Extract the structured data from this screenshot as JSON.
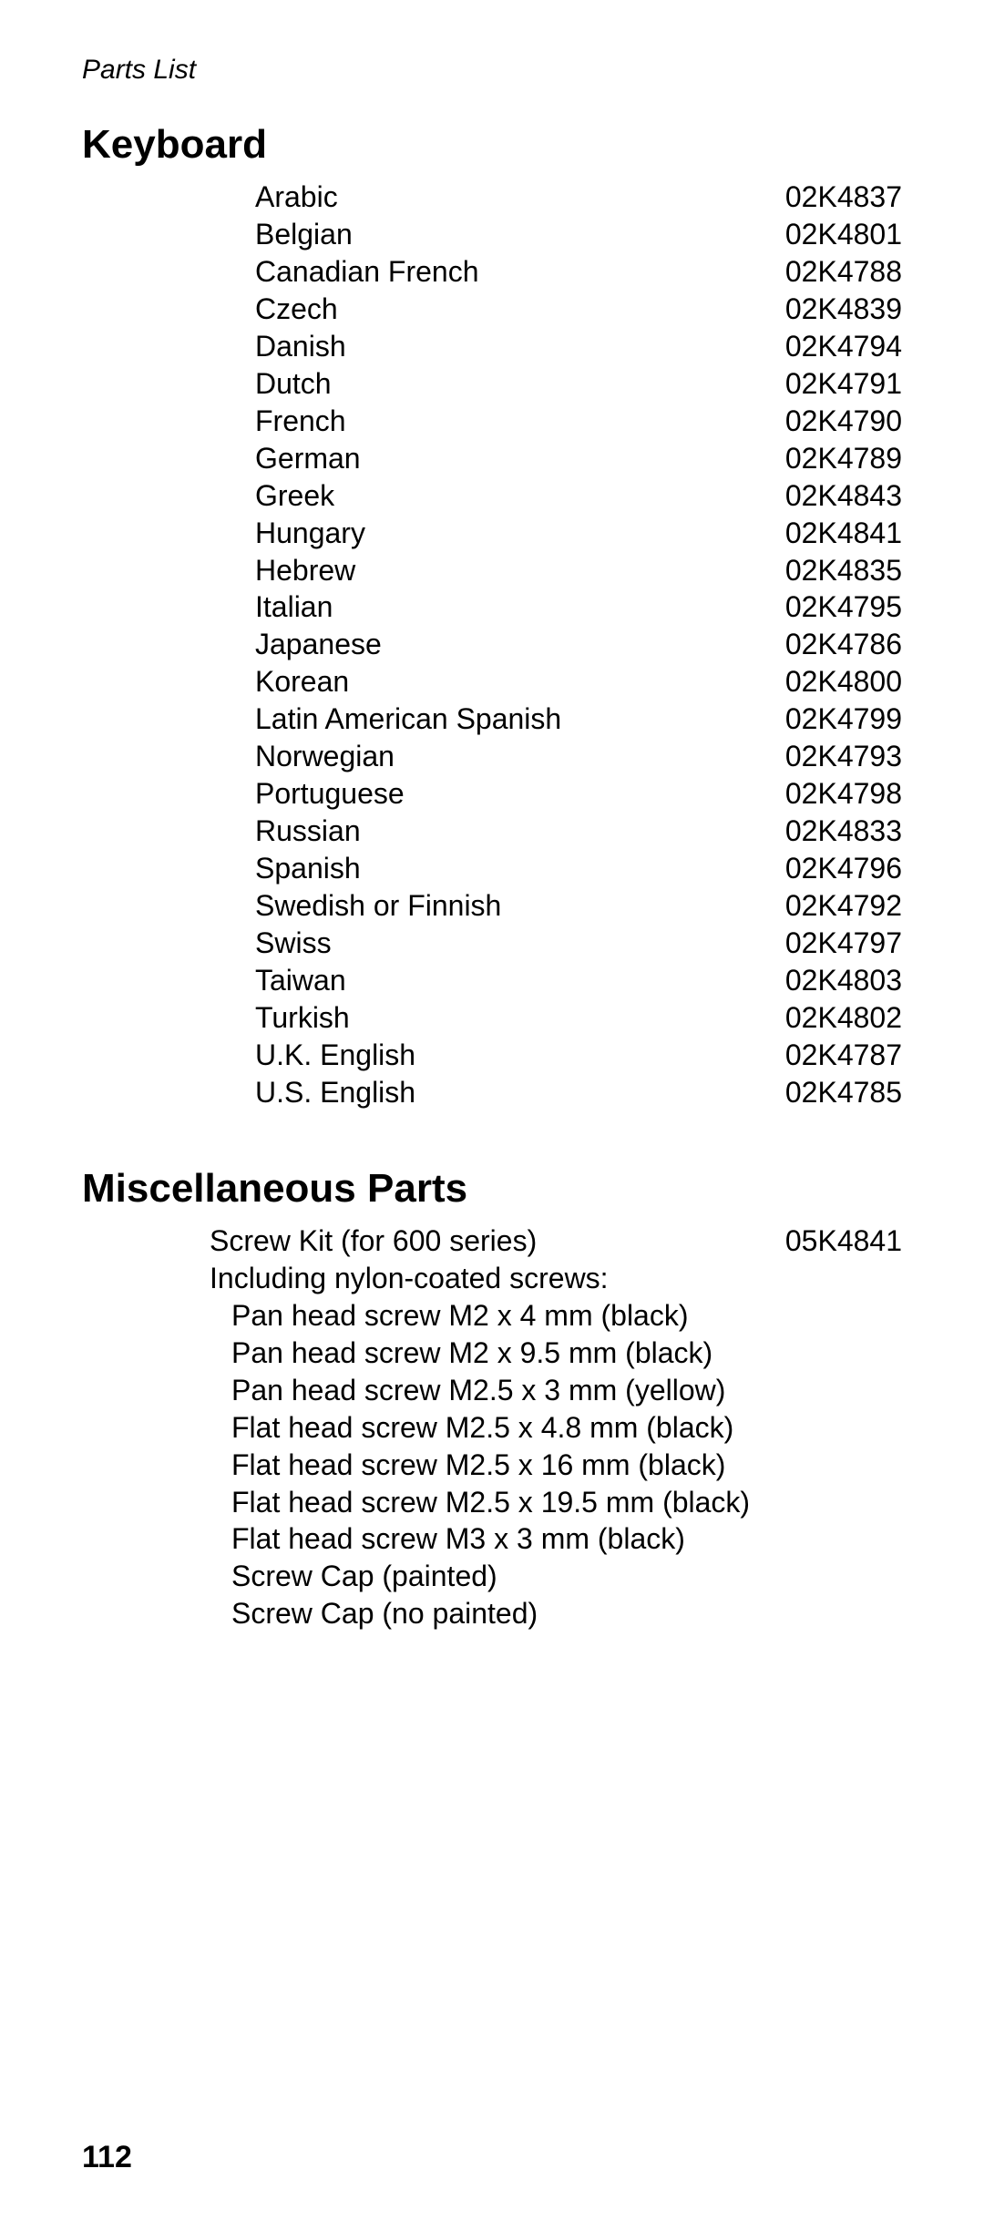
{
  "runningHead": "Parts List",
  "pageNumber": "112",
  "sections": {
    "keyboard": {
      "title": "Keyboard",
      "rows": [
        {
          "name": "Arabic",
          "pn": "02K4837"
        },
        {
          "name": "Belgian",
          "pn": "02K4801"
        },
        {
          "name": "Canadian French",
          "pn": "02K4788"
        },
        {
          "name": "Czech",
          "pn": "02K4839"
        },
        {
          "name": "Danish",
          "pn": "02K4794"
        },
        {
          "name": "Dutch",
          "pn": "02K4791"
        },
        {
          "name": "French",
          "pn": "02K4790"
        },
        {
          "name": "German",
          "pn": "02K4789"
        },
        {
          "name": "Greek",
          "pn": "02K4843"
        },
        {
          "name": "Hungary",
          "pn": "02K4841"
        },
        {
          "name": "Hebrew",
          "pn": "02K4835"
        },
        {
          "name": "Italian",
          "pn": "02K4795"
        },
        {
          "name": "Japanese",
          "pn": "02K4786"
        },
        {
          "name": "Korean",
          "pn": "02K4800"
        },
        {
          "name": "Latin American Spanish",
          "pn": "02K4799"
        },
        {
          "name": "Norwegian",
          "pn": "02K4793"
        },
        {
          "name": "Portuguese",
          "pn": "02K4798"
        },
        {
          "name": "Russian",
          "pn": "02K4833"
        },
        {
          "name": "Spanish",
          "pn": "02K4796"
        },
        {
          "name": "Swedish or Finnish",
          "pn": "02K4792"
        },
        {
          "name": "Swiss",
          "pn": "02K4797"
        },
        {
          "name": "Taiwan",
          "pn": "02K4803"
        },
        {
          "name": "Turkish",
          "pn": "02K4802"
        },
        {
          "name": "U.K. English",
          "pn": "02K4787"
        },
        {
          "name": "U.S. English",
          "pn": "02K4785"
        }
      ]
    },
    "misc": {
      "title": "Miscellaneous Parts",
      "topLine": {
        "name": "Screw Kit (for 600 series)",
        "pn": "05K4841"
      },
      "subhead": "Including nylon-coated screws:",
      "items": [
        "Pan head screw M2 x 4 mm (black)",
        "Pan head screw M2 x 9.5 mm (black)",
        "Pan head screw M2.5 x 3 mm (yellow)",
        "Flat head screw M2.5 x 4.8 mm (black)",
        "Flat head screw M2.5 x 16 mm (black)",
        "Flat head screw M2.5 x 19.5 mm (black)",
        "Flat head screw M3 x 3 mm (black)",
        "Screw Cap (painted)",
        "Screw Cap (no painted)"
      ]
    }
  }
}
